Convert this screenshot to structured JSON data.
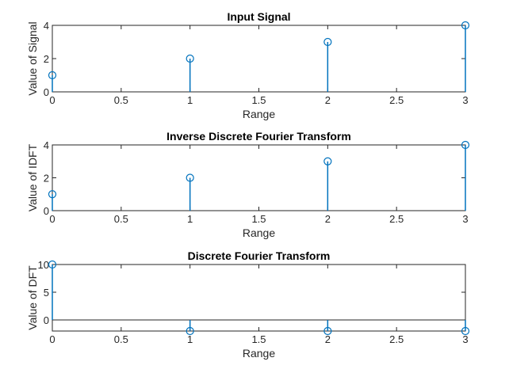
{
  "chart_data": [
    {
      "type": "stem",
      "title": "Input Signal",
      "xlabel": "Range",
      "ylabel": "Value of Signal",
      "xlim": [
        0,
        3
      ],
      "ylim": [
        0,
        4
      ],
      "xticks": [
        "0",
        "0.5",
        "1",
        "1.5",
        "2",
        "2.5",
        "3"
      ],
      "yticks": [
        "0",
        "2",
        "4"
      ],
      "x": [
        0,
        1,
        2,
        3
      ],
      "values": [
        1,
        2,
        3,
        4
      ],
      "color": "#0072BD",
      "grid": false
    },
    {
      "type": "stem",
      "title": "Inverse Discrete Fourier Transform",
      "xlabel": "Range",
      "ylabel": "Value of IDFT",
      "xlim": [
        0,
        3
      ],
      "ylim": [
        0,
        4
      ],
      "xticks": [
        "0",
        "0.5",
        "1",
        "1.5",
        "2",
        "2.5",
        "3"
      ],
      "yticks": [
        "0",
        "2",
        "4"
      ],
      "x": [
        0,
        1,
        2,
        3
      ],
      "values": [
        1,
        2,
        3,
        4
      ],
      "color": "#0072BD",
      "grid": false
    },
    {
      "type": "stem",
      "title": "Discrete Fourier Transform",
      "xlabel": "Range",
      "ylabel": "Value of DFT",
      "xlim": [
        0,
        3
      ],
      "ylim": [
        -2,
        10
      ],
      "xticks": [
        "0",
        "0.5",
        "1",
        "1.5",
        "2",
        "2.5",
        "3"
      ],
      "yticks": [
        "0",
        "5",
        "10"
      ],
      "x": [
        0,
        1,
        2,
        3
      ],
      "values": [
        10,
        -2,
        -2,
        -2
      ],
      "baseline": 0,
      "color": "#0072BD",
      "grid": false
    }
  ]
}
